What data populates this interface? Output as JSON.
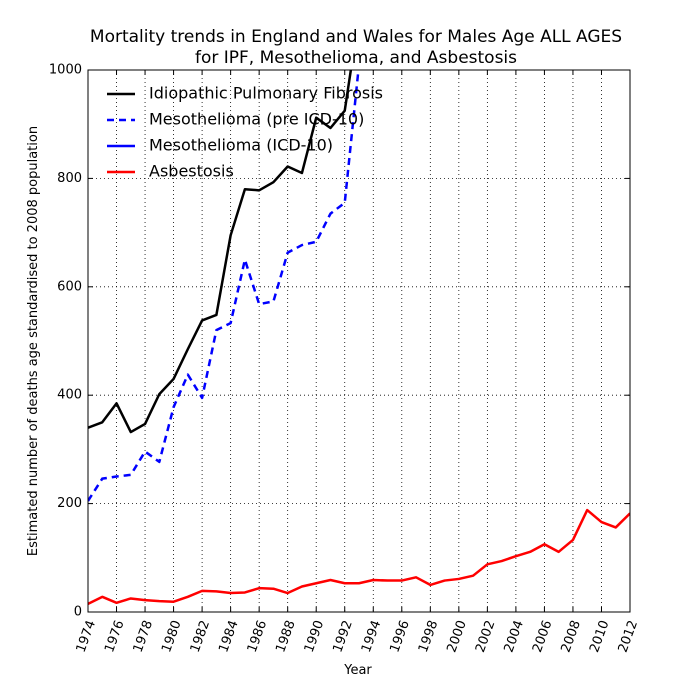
{
  "chart_data": {
    "type": "line",
    "title": "Mortality trends in England and Wales for Males Age ALL AGES",
    "subtitle": "for IPF, Mesothelioma, and Asbestosis",
    "xlabel": "Year",
    "ylabel": "Estimated number of deaths age standardised to 2008 population",
    "xlim": [
      1974,
      2012
    ],
    "ylim": [
      0,
      1000
    ],
    "xticks": [
      "1974",
      "1976",
      "1978",
      "1980",
      "1982",
      "1984",
      "1986",
      "1988",
      "1990",
      "1992",
      "1994",
      "1996",
      "1998",
      "2000",
      "2002",
      "2004",
      "2006",
      "2008",
      "2010",
      "2012"
    ],
    "yticks": [
      "0",
      "200",
      "400",
      "600",
      "800",
      "1000"
    ],
    "grid": true,
    "legend_position": "top-left",
    "series": [
      {
        "name": "Idiopathic Pulmonary Fibrosis",
        "color": "#000000",
        "style": "solid",
        "x": [
          1974,
          1975,
          1976,
          1977,
          1978,
          1979,
          1980,
          1981,
          1982,
          1983,
          1984,
          1985,
          1986,
          1987,
          1988,
          1989,
          1990,
          1991,
          1992,
          1993
        ],
        "y": [
          340,
          350,
          385,
          332,
          347,
          402,
          430,
          485,
          538,
          548,
          695,
          780,
          778,
          793,
          822,
          810,
          912,
          893,
          925,
          1100
        ]
      },
      {
        "name": "Mesothelioma (pre ICD-10)",
        "color": "#0000ff",
        "style": "dashed",
        "x": [
          1974,
          1975,
          1976,
          1977,
          1978,
          1979,
          1980,
          1981,
          1982,
          1983,
          1984,
          1985,
          1986,
          1987,
          1988,
          1989,
          1990,
          1991,
          1992,
          1993
        ],
        "y": [
          205,
          246,
          250,
          253,
          296,
          277,
          378,
          438,
          395,
          520,
          533,
          650,
          568,
          573,
          663,
          677,
          683,
          735,
          755,
          1010
        ]
      },
      {
        "name": "Mesothelioma (ICD-10)",
        "color": "#0000ff",
        "style": "solid",
        "x": [],
        "y": []
      },
      {
        "name": "Asbestosis",
        "color": "#ff0000",
        "style": "solid",
        "x": [
          1974,
          1975,
          1976,
          1977,
          1978,
          1979,
          1980,
          1981,
          1982,
          1983,
          1984,
          1985,
          1986,
          1987,
          1988,
          1989,
          1990,
          1991,
          1992,
          1993,
          1994,
          1995,
          1996,
          1997,
          1998,
          1999,
          2000,
          2001,
          2002,
          2003,
          2004,
          2005,
          2006,
          2007,
          2008,
          2009,
          2010,
          2011,
          2012
        ],
        "y": [
          15,
          28,
          17,
          25,
          22,
          20,
          19,
          28,
          39,
          38,
          35,
          36,
          44,
          43,
          35,
          47,
          53,
          59,
          53,
          53,
          59,
          58,
          58,
          64,
          50,
          58,
          61,
          67,
          88,
          94,
          103,
          111,
          125,
          111,
          133,
          188,
          166,
          156,
          182
        ]
      }
    ]
  }
}
